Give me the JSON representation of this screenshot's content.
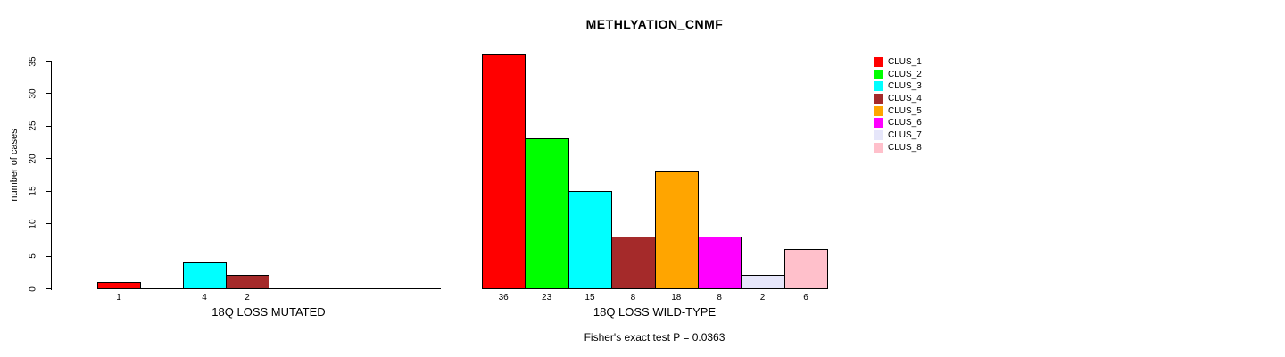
{
  "chart_data": {
    "type": "bar",
    "title": "METHLYATION_CNMF",
    "ylabel": "number of cases",
    "ylim": [
      0,
      35
    ],
    "yticks": [
      0,
      5,
      10,
      15,
      20,
      25,
      30,
      35
    ],
    "grid": false,
    "legend_position": "right",
    "categories": [
      "CLUS_1",
      "CLUS_2",
      "CLUS_3",
      "CLUS_4",
      "CLUS_5",
      "CLUS_6",
      "CLUS_7",
      "CLUS_8"
    ],
    "colors": [
      "#FF0000",
      "#00FF00",
      "#00FFFF",
      "#A52A2A",
      "#FFA500",
      "#FF00FF",
      "#E6E6FA",
      "#FFC0CB"
    ],
    "panels": [
      {
        "label": "18Q LOSS MUTATED",
        "values": [
          1,
          0,
          4,
          2,
          0,
          0,
          0,
          0
        ]
      },
      {
        "label": "18Q LOSS WILD-TYPE",
        "values": [
          36,
          23,
          15,
          8,
          18,
          8,
          2,
          6
        ]
      }
    ],
    "bar_label_rule": "value shown under bar only when value > 0",
    "footnote": "Fisher's exact test P = 0.0363"
  }
}
